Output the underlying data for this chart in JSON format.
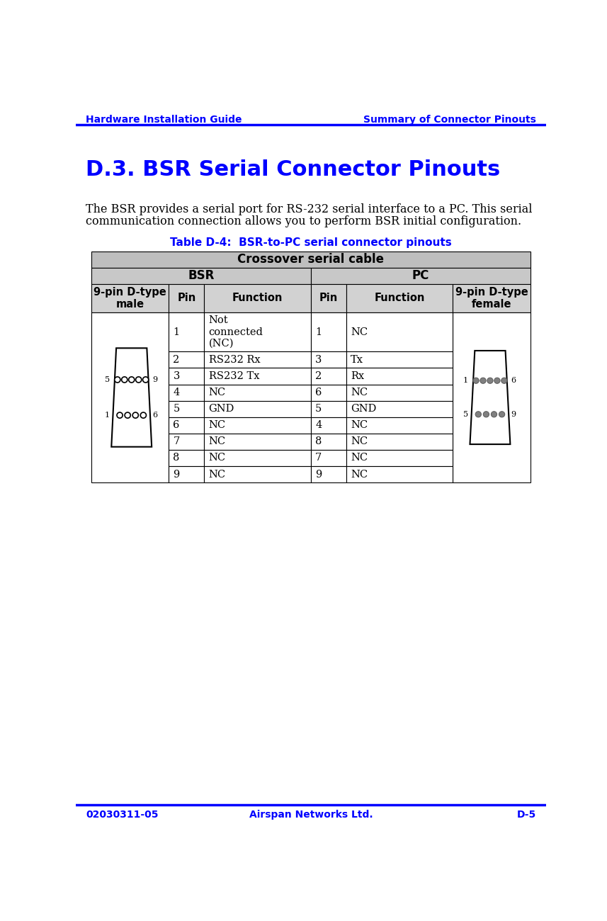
{
  "header_left": "Hardware Installation Guide",
  "header_right": "Summary of Connector Pinouts",
  "header_color": "#0000FF",
  "header_line_color": "#0000FF",
  "section_title": "D.3. BSR Serial Connector Pinouts",
  "section_title_color": "#0000FF",
  "body_text_line1": "The BSR provides a serial port for RS-232 serial interface to a PC. This serial",
  "body_text_line2": "communication connection allows you to perform BSR initial configuration.",
  "table_caption": "Table D-4:  BSR-to-PC serial connector pinouts",
  "table_caption_color": "#0000FF",
  "footer_left": "02030311-05",
  "footer_center": "Airspan Networks Ltd.",
  "footer_right": "D-5",
  "footer_color": "#0000FF",
  "footer_line_color": "#0000FF",
  "col_header_row1": "Crossover serial cable",
  "col_header_bsr": "BSR",
  "col_header_pc": "PC",
  "col_subheader": [
    "9-pin D-type\nmale",
    "Pin",
    "Function",
    "Pin",
    "Function",
    "9-pin D-type\nfemale"
  ],
  "table_rows": [
    [
      "",
      "1",
      "Not\nconnected\n(NC)",
      "1",
      "NC",
      ""
    ],
    [
      "",
      "2",
      "RS232 Rx",
      "3",
      "Tx",
      ""
    ],
    [
      "",
      "3",
      "RS232 Tx",
      "2",
      "Rx",
      ""
    ],
    [
      "",
      "4",
      "NC",
      "6",
      "NC",
      ""
    ],
    [
      "",
      "5",
      "GND",
      "5",
      "GND",
      ""
    ],
    [
      "",
      "6",
      "NC",
      "4",
      "NC",
      ""
    ],
    [
      "",
      "7",
      "NC",
      "8",
      "NC",
      ""
    ],
    [
      "",
      "8",
      "NC",
      "7",
      "NC",
      ""
    ],
    [
      "",
      "9",
      "NC",
      "9",
      "NC",
      ""
    ]
  ],
  "table_bg_header1": "#BEBEBE",
  "table_bg_header2": "#C8C8C8",
  "table_bg_subheader": "#D2D2D2",
  "table_border_color": "#000000"
}
